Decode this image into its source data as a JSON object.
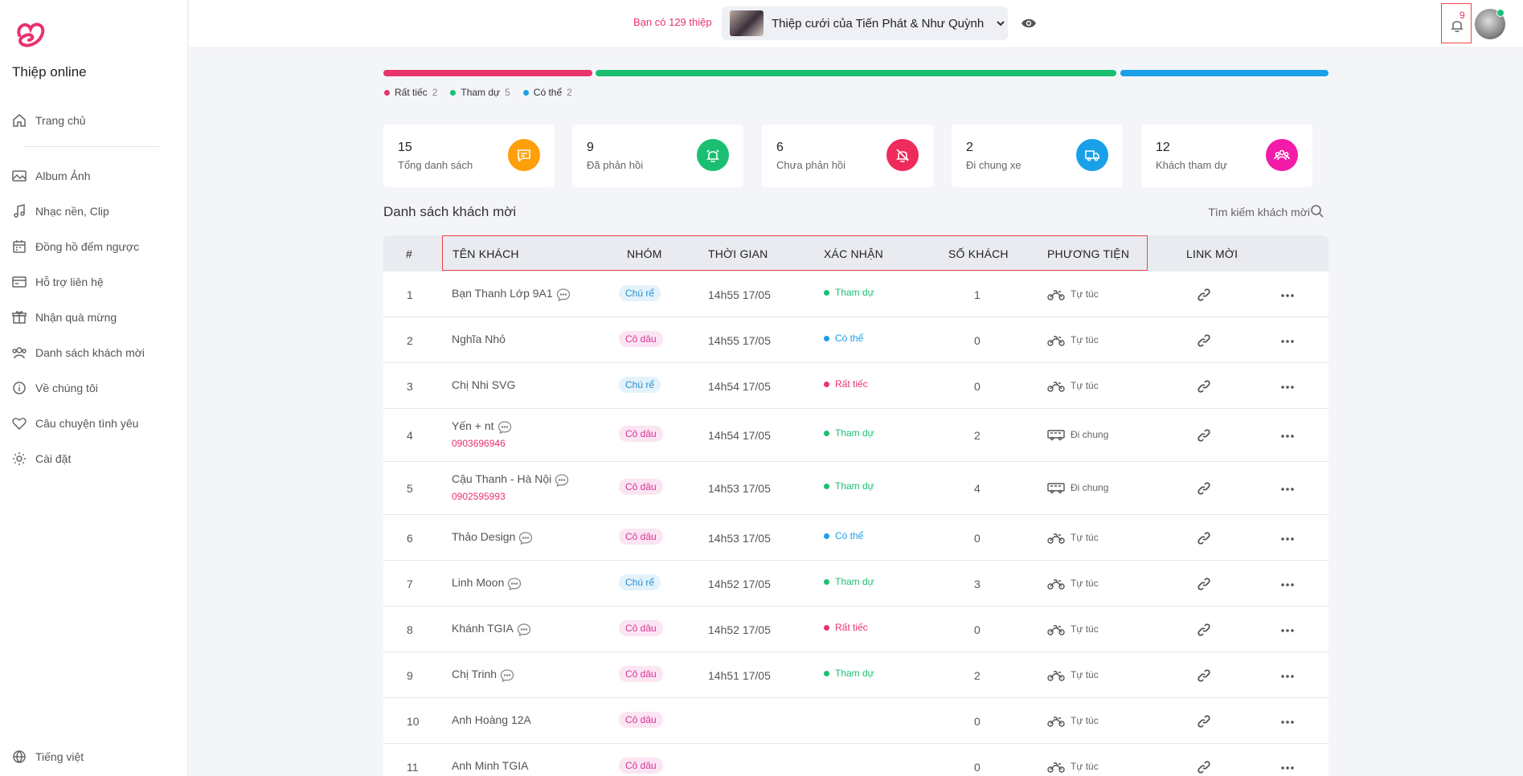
{
  "sidebar": {
    "brand": "Thiệp online",
    "items": [
      {
        "label": "Trang chủ",
        "icon": "home-icon"
      },
      {
        "label": "Album Ảnh",
        "icon": "image-icon"
      },
      {
        "label": "Nhạc nền, Clip",
        "icon": "music-icon"
      },
      {
        "label": "Đồng hồ đếm ngược",
        "icon": "calendar-icon"
      },
      {
        "label": "Hỗ trợ liên hệ",
        "icon": "card-icon"
      },
      {
        "label": "Nhận quà mừng",
        "icon": "gift-icon"
      },
      {
        "label": "Danh sách khách mời",
        "icon": "users-icon"
      },
      {
        "label": "Về chúng tôi",
        "icon": "info-icon"
      },
      {
        "label": "Câu chuyện tình yêu",
        "icon": "heart-icon"
      },
      {
        "label": "Cài đặt",
        "icon": "gear-icon"
      }
    ],
    "language": "Tiếng việt"
  },
  "topbar": {
    "invite_count": "Bạn có 129 thiệp",
    "card_title": "Thiệp cưới của Tiến Phát & Như Quỳnh",
    "notification_count": "9"
  },
  "rsvp_summary": {
    "declined": {
      "label": "Rất tiếc",
      "count": 2,
      "color": "#e8336d"
    },
    "attending": {
      "label": "Tham dự",
      "count": 5,
      "color": "#1bbf72"
    },
    "maybe": {
      "label": "Có thể",
      "count": 2,
      "color": "#1aa0e8"
    }
  },
  "stats": [
    {
      "value": "15",
      "label": "Tổng danh sách",
      "color": "#ff9f0a",
      "icon": "chat-icon"
    },
    {
      "value": "9",
      "label": "Đã phản hồi",
      "color": "#1bbf72",
      "icon": "bell-icon"
    },
    {
      "value": "6",
      "label": "Chưa phản hồi",
      "color": "#ee2b5b",
      "icon": "bell-off-icon"
    },
    {
      "value": "2",
      "label": "Đi chung xe",
      "color": "#1aa0e8",
      "icon": "truck-icon"
    },
    {
      "value": "12",
      "label": "Khách tham dự",
      "color": "#f21ca8",
      "icon": "group-icon"
    }
  ],
  "guest_list": {
    "title": "Danh sách khách mời",
    "search_placeholder": "Tìm kiếm khách mời",
    "columns": {
      "index": "#",
      "name": "TÊN KHÁCH",
      "group": "NHÓM",
      "time": "THỜI GIAN",
      "confirm": "XÁC NHẬN",
      "guests": "SỐ KHÁCH",
      "transport": "PHƯƠNG TIỆN",
      "link": "LINK MỜI"
    },
    "rows": [
      {
        "idx": "1",
        "name": "Bạn Thanh Lớp 9A1",
        "phone": "",
        "chat": true,
        "group": "Chú rể",
        "time": "14h55 17/05",
        "status": "Tham dự",
        "guests": "1",
        "transport": "Tự túc"
      },
      {
        "idx": "2",
        "name": "Nghĩa Nhỏ",
        "phone": "",
        "chat": false,
        "group": "Cô dâu",
        "time": "14h55 17/05",
        "status": "Có thể",
        "guests": "0",
        "transport": "Tự túc"
      },
      {
        "idx": "3",
        "name": "Chị Nhi SVG",
        "phone": "",
        "chat": false,
        "group": "Chú rể",
        "time": "14h54 17/05",
        "status": "Rất tiếc",
        "guests": "0",
        "transport": "Tự túc"
      },
      {
        "idx": "4",
        "name": "Yến + nt",
        "phone": "0903696946",
        "chat": true,
        "group": "Cô dâu",
        "time": "14h54 17/05",
        "status": "Tham dự",
        "guests": "2",
        "transport": "Đi chung"
      },
      {
        "idx": "5",
        "name": "Cậu Thanh - Hà Nội",
        "phone": "0902595993",
        "chat": true,
        "group": "Cô dâu",
        "time": "14h53 17/05",
        "status": "Tham dự",
        "guests": "4",
        "transport": "Đi chung"
      },
      {
        "idx": "6",
        "name": "Thảo Design",
        "phone": "",
        "chat": true,
        "group": "Cô dâu",
        "time": "14h53 17/05",
        "status": "Có thể",
        "guests": "0",
        "transport": "Tự túc"
      },
      {
        "idx": "7",
        "name": "Linh Moon",
        "phone": "",
        "chat": true,
        "group": "Chú rể",
        "time": "14h52 17/05",
        "status": "Tham dự",
        "guests": "3",
        "transport": "Tự túc"
      },
      {
        "idx": "8",
        "name": "Khánh TGIA",
        "phone": "",
        "chat": true,
        "group": "Cô dâu",
        "time": "14h52 17/05",
        "status": "Rất tiếc",
        "guests": "0",
        "transport": "Tự túc"
      },
      {
        "idx": "9",
        "name": "Chị Trinh",
        "phone": "",
        "chat": true,
        "group": "Cô dâu",
        "time": "14h51 17/05",
        "status": "Tham dự",
        "guests": "2",
        "transport": "Tự túc"
      },
      {
        "idx": "10",
        "name": "Anh Hoàng 12A",
        "phone": "",
        "chat": false,
        "group": "Cô dâu",
        "time": "",
        "status": "",
        "guests": "0",
        "transport": "Tự túc"
      },
      {
        "idx": "11",
        "name": "Anh Minh TGIA",
        "phone": "",
        "chat": false,
        "group": "Cô dâu",
        "time": "",
        "status": "",
        "guests": "0",
        "transport": "Tự túc"
      }
    ]
  }
}
